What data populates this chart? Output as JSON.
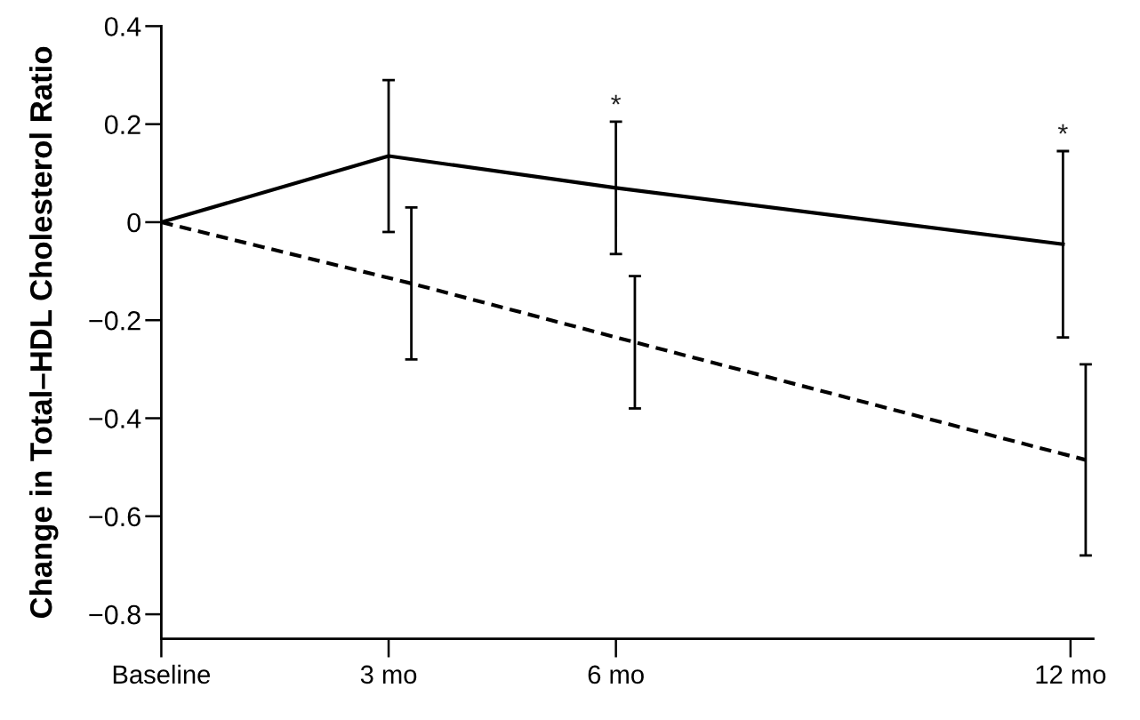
{
  "chart_data": {
    "type": "line",
    "ylabel": "Change in Total–HDL Cholesterol Ratio",
    "xlim": [
      0,
      12.3
    ],
    "xticks": [
      {
        "value": 0,
        "label": "Baseline"
      },
      {
        "value": 3,
        "label": "3 mo"
      },
      {
        "value": 6,
        "label": "6 mo"
      },
      {
        "value": 12,
        "label": "12 mo"
      }
    ],
    "ylim": [
      -0.85,
      0.4
    ],
    "yticks": [
      {
        "value": -0.8,
        "label": "−0.8"
      },
      {
        "value": -0.6,
        "label": "−0.6"
      },
      {
        "value": -0.4,
        "label": "−0.4"
      },
      {
        "value": -0.2,
        "label": "−0.2"
      },
      0,
      0.2,
      0.4
    ],
    "series": [
      {
        "color": "#000000",
        "line_style": "solid",
        "x": [
          0,
          3,
          6,
          11.9
        ],
        "values": [
          0,
          0.135,
          0.07,
          -0.045
        ],
        "errors": [
          null,
          0.155,
          0.135,
          0.19
        ]
      },
      {
        "color": "#000000",
        "line_style": "dashed",
        "x": [
          0,
          3.3,
          6.25,
          12.2
        ],
        "values": [
          0,
          -0.125,
          -0.245,
          -0.485
        ],
        "errors": [
          null,
          0.155,
          0.135,
          0.195
        ]
      }
    ],
    "annotations": [
      {
        "text": "*",
        "x": 6,
        "y": 0.205
      },
      {
        "text": "*",
        "x": 11.9,
        "y": 0.145
      }
    ]
  }
}
